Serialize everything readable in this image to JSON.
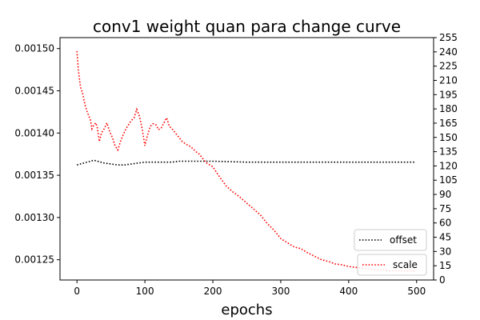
{
  "chart_data": {
    "type": "line",
    "title": "conv1 weight quan para change curve",
    "xlabel": "epochs",
    "ylabel": "",
    "ylabel_right": "",
    "xlim": [
      -25,
      525
    ],
    "ylim": [
      0.001226,
      0.001513
    ],
    "ylim_right": [
      0,
      255
    ],
    "xticks": [
      0,
      100,
      200,
      300,
      400,
      500
    ],
    "yticks": [
      0.00125,
      0.0013,
      0.00135,
      0.0014,
      0.00145,
      0.0015
    ],
    "ytick_labels": [
      "0.00125",
      "0.00130",
      "0.00135",
      "0.00140",
      "0.00145",
      "0.00150"
    ],
    "yticks_right": [
      0,
      15,
      30,
      45,
      60,
      75,
      90,
      105,
      120,
      135,
      150,
      165,
      180,
      195,
      210,
      225,
      240,
      255
    ],
    "grid": false,
    "series": [
      {
        "name": "offset",
        "axis": "right",
        "color": "#000000",
        "style": "dotted",
        "x": [
          0,
          10,
          20,
          25,
          30,
          40,
          50,
          60,
          70,
          80,
          90,
          100,
          110,
          120,
          130,
          140,
          150,
          160,
          170,
          180,
          200,
          250,
          300,
          350,
          400,
          450,
          497
        ],
        "y": [
          121,
          123,
          125,
          126,
          125,
          123,
          122,
          121,
          121,
          122,
          123,
          124,
          124,
          124,
          124,
          124,
          125,
          125,
          125,
          125,
          125,
          124,
          124,
          124,
          124,
          124,
          124
        ]
      },
      {
        "name": "scale",
        "axis": "left",
        "color": "#ff0000",
        "style": "dotted",
        "x": [
          0,
          2,
          5,
          8,
          12,
          15,
          20,
          22,
          25,
          28,
          30,
          33,
          36,
          40,
          44,
          48,
          52,
          56,
          60,
          64,
          68,
          72,
          76,
          80,
          84,
          88,
          92,
          96,
          100,
          104,
          108,
          112,
          116,
          120,
          124,
          128,
          132,
          136,
          140,
          145,
          150,
          155,
          160,
          165,
          170,
          175,
          180,
          185,
          190,
          200,
          210,
          220,
          230,
          240,
          250,
          260,
          270,
          280,
          290,
          300,
          310,
          320,
          330,
          340,
          350,
          360,
          370,
          380,
          390,
          400,
          410,
          420,
          430,
          440,
          450,
          460,
          470,
          480,
          490,
          497
        ],
        "y": [
          0.001497,
          0.001475,
          0.001455,
          0.001448,
          0.001433,
          0.001425,
          0.001415,
          0.001405,
          0.00141,
          0.001412,
          0.001406,
          0.00139,
          0.0014,
          0.001405,
          0.001412,
          0.001402,
          0.001395,
          0.001385,
          0.00138,
          0.00139,
          0.001398,
          0.001405,
          0.00141,
          0.001415,
          0.001418,
          0.001428,
          0.00142,
          0.001405,
          0.001385,
          0.001398,
          0.001408,
          0.001411,
          0.00141,
          0.001404,
          0.001406,
          0.001412,
          0.001418,
          0.001408,
          0.001405,
          0.0014,
          0.001395,
          0.00139,
          0.001387,
          0.001385,
          0.001382,
          0.001378,
          0.001375,
          0.00137,
          0.001365,
          0.00136,
          0.001348,
          0.001337,
          0.00133,
          0.001324,
          0.001317,
          0.00131,
          0.001303,
          0.001293,
          0.001285,
          0.001275,
          0.00127,
          0.001265,
          0.001263,
          0.001258,
          0.001254,
          0.00125,
          0.001248,
          0.001245,
          0.001244,
          0.001242,
          0.001241,
          0.00124,
          0.001239,
          0.001238,
          0.001238,
          0.001237,
          0.001237,
          0.001237,
          0.001237,
          0.001237
        ]
      }
    ],
    "legends": [
      {
        "label": "offset",
        "series": "offset",
        "position": "bottom-right (upper)"
      },
      {
        "label": "scale",
        "series": "scale",
        "position": "bottom-right (lower)"
      }
    ]
  }
}
